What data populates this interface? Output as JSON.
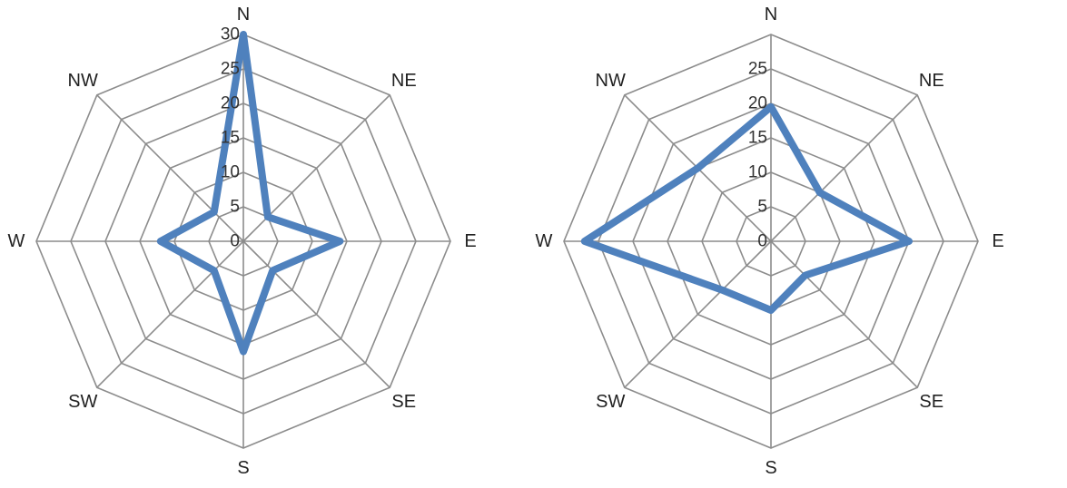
{
  "chart_data": [
    {
      "type": "radar",
      "categories": [
        "N",
        "NE",
        "E",
        "SE",
        "S",
        "SW",
        "W",
        "NW"
      ],
      "values": [
        30,
        5,
        14,
        6,
        16,
        6,
        12,
        6
      ],
      "rlim": [
        0,
        30
      ],
      "ticks": [
        "0",
        "5",
        "10",
        "15",
        "20",
        "25",
        "30"
      ],
      "tick_values": [
        0,
        5,
        10,
        15,
        20,
        25,
        30
      ],
      "series_color": "#4f81bd",
      "grid": true,
      "grid_color": "#8c8c8c"
    },
    {
      "type": "radar",
      "categories": [
        "N",
        "NE",
        "E",
        "SE",
        "S",
        "SW",
        "W",
        "NW"
      ],
      "values": [
        19.5,
        10,
        20,
        7,
        10,
        10,
        27,
        15
      ],
      "rlim": [
        0,
        30
      ],
      "ticks": [
        "0",
        "5",
        "10",
        "15",
        "20",
        "25"
      ],
      "tick_values": [
        0,
        5,
        10,
        15,
        20,
        25
      ],
      "series_color": "#4f81bd",
      "grid": true,
      "grid_color": "#8c8c8c"
    }
  ]
}
